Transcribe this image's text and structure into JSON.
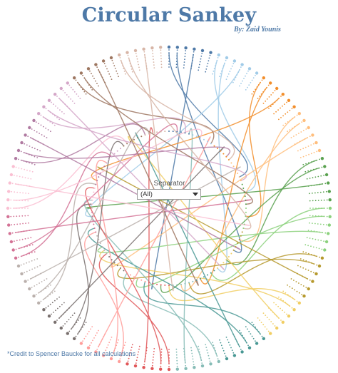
{
  "page": {
    "title": "Circular Sankey",
    "byline": "By: Zaid Younis",
    "credit": "*Credit to Spencer Baucke for all calculations"
  },
  "filter": {
    "label": "Separator",
    "value": "(All)"
  },
  "colors": {
    "title": "#4e79a7",
    "palette": [
      "#4e79a7",
      "#a0cbe8",
      "#f28e2b",
      "#ffbe7d",
      "#59a14f",
      "#8cd17d",
      "#b6992d",
      "#f1ce63",
      "#499894",
      "#86bcb6",
      "#e15759",
      "#ff9d9a",
      "#79706e",
      "#bab0ac",
      "#d37295",
      "#fabfd2",
      "#b07aa1",
      "#d4a6c8",
      "#9d7660",
      "#d7b5a6"
    ]
  },
  "chart_data": {
    "type": "circular-sankey",
    "node_count": 120,
    "groups": [
      {
        "color": "#4e79a7",
        "nodes": 6
      },
      {
        "color": "#a0cbe8",
        "nodes": 6
      },
      {
        "color": "#f28e2b",
        "nodes": 6
      },
      {
        "color": "#ffbe7d",
        "nodes": 6
      },
      {
        "color": "#59a14f",
        "nodes": 6
      },
      {
        "color": "#8cd17d",
        "nodes": 6
      },
      {
        "color": "#b6992d",
        "nodes": 6
      },
      {
        "color": "#f1ce63",
        "nodes": 6
      },
      {
        "color": "#499894",
        "nodes": 6
      },
      {
        "color": "#86bcb6",
        "nodes": 6
      },
      {
        "color": "#e15759",
        "nodes": 6
      },
      {
        "color": "#ff9d9a",
        "nodes": 6
      },
      {
        "color": "#79706e",
        "nodes": 6
      },
      {
        "color": "#bab0ac",
        "nodes": 6
      },
      {
        "color": "#d37295",
        "nodes": 6
      },
      {
        "color": "#fabfd2",
        "nodes": 6
      },
      {
        "color": "#b07aa1",
        "nodes": 6
      },
      {
        "color": "#d4a6c8",
        "nodes": 6
      },
      {
        "color": "#9d7660",
        "nodes": 6
      },
      {
        "color": "#d7b5a6",
        "nodes": 6
      }
    ],
    "links": [
      {
        "source": 0,
        "target": 22
      },
      {
        "source": 1,
        "target": 41
      },
      {
        "source": 3,
        "target": 64
      },
      {
        "source": 6,
        "target": 26
      },
      {
        "source": 7,
        "target": 47
      },
      {
        "source": 9,
        "target": 88
      },
      {
        "source": 12,
        "target": 32
      },
      {
        "source": 13,
        "target": 52
      },
      {
        "source": 15,
        "target": 97
      },
      {
        "source": 18,
        "target": 38
      },
      {
        "source": 19,
        "target": 57
      },
      {
        "source": 21,
        "target": 75
      },
      {
        "source": 24,
        "target": 44
      },
      {
        "source": 25,
        "target": 62
      },
      {
        "source": 27,
        "target": 90
      },
      {
        "source": 30,
        "target": 49
      },
      {
        "source": 31,
        "target": 68
      },
      {
        "source": 33,
        "target": 80
      },
      {
        "source": 36,
        "target": 55
      },
      {
        "source": 37,
        "target": 73
      },
      {
        "source": 39,
        "target": 100
      },
      {
        "source": 42,
        "target": 60
      },
      {
        "source": 43,
        "target": 79
      },
      {
        "source": 45,
        "target": 110
      },
      {
        "source": 48,
        "target": 66
      },
      {
        "source": 50,
        "target": 85
      },
      {
        "source": 51,
        "target": 112
      },
      {
        "source": 54,
        "target": 71
      },
      {
        "source": 56,
        "target": 92
      },
      {
        "source": 58,
        "target": 5
      },
      {
        "source": 60,
        "target": 78
      },
      {
        "source": 61,
        "target": 95
      },
      {
        "source": 63,
        "target": 116
      },
      {
        "source": 66,
        "target": 84
      },
      {
        "source": 67,
        "target": 102
      },
      {
        "source": 69,
        "target": 10
      },
      {
        "source": 72,
        "target": 91
      },
      {
        "source": 73,
        "target": 108
      },
      {
        "source": 75,
        "target": 14
      },
      {
        "source": 78,
        "target": 96
      },
      {
        "source": 79,
        "target": 115
      },
      {
        "source": 81,
        "target": 20
      },
      {
        "source": 84,
        "target": 104
      },
      {
        "source": 85,
        "target": 2
      },
      {
        "source": 87,
        "target": 28
      },
      {
        "source": 90,
        "target": 109
      },
      {
        "source": 91,
        "target": 8
      },
      {
        "source": 93,
        "target": 34
      },
      {
        "source": 96,
        "target": 114
      },
      {
        "source": 97,
        "target": 16
      },
      {
        "source": 99,
        "target": 40
      },
      {
        "source": 102,
        "target": 4
      },
      {
        "source": 103,
        "target": 23
      },
      {
        "source": 105,
        "target": 46
      },
      {
        "source": 108,
        "target": 11
      },
      {
        "source": 109,
        "target": 29
      },
      {
        "source": 111,
        "target": 53
      },
      {
        "source": 114,
        "target": 17
      },
      {
        "source": 115,
        "target": 35
      },
      {
        "source": 117,
        "target": 59
      }
    ]
  }
}
